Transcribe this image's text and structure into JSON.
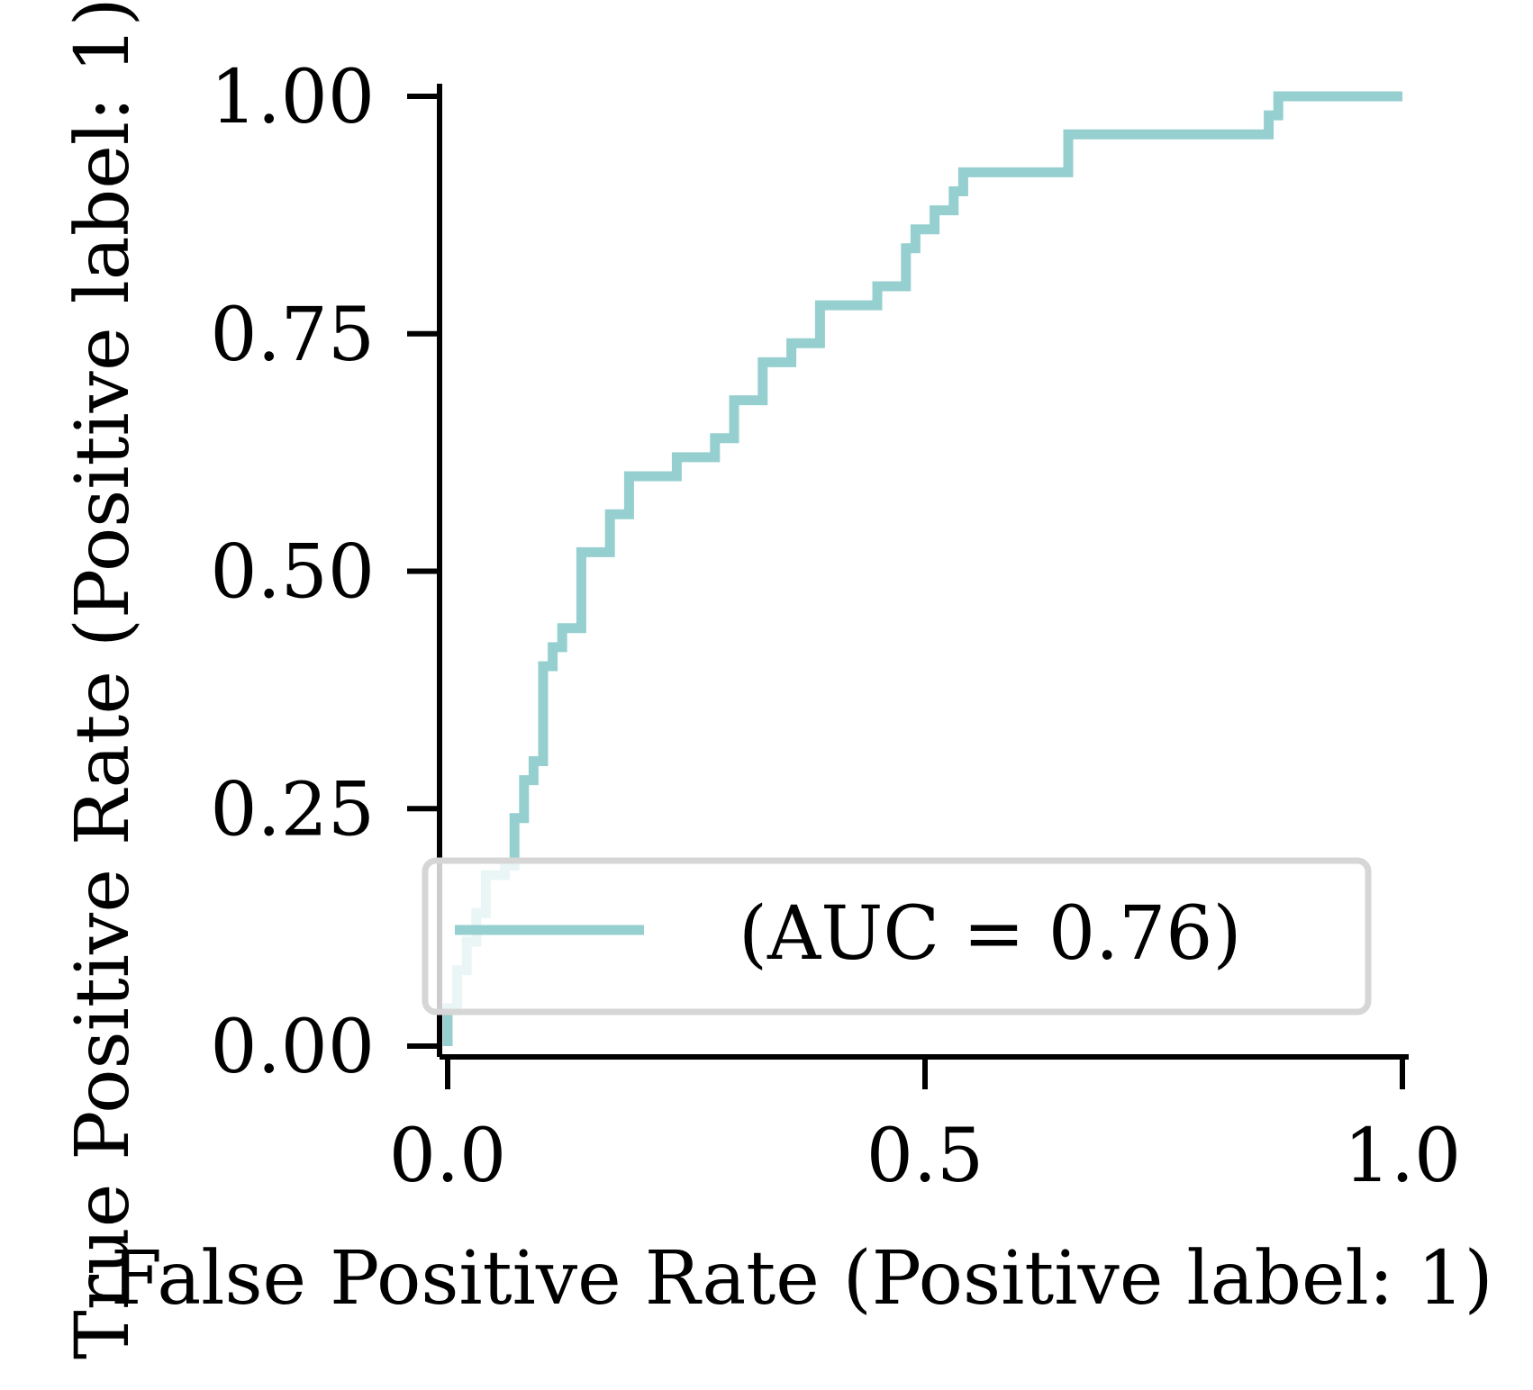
{
  "chart_data": {
    "type": "line",
    "title": "",
    "xlabel": "False Positive Rate (Positive label: 1)",
    "ylabel": "True Positive Rate (Positive label: 1)",
    "xlim": [
      0.0,
      1.0
    ],
    "ylim": [
      0.0,
      1.0
    ],
    "grid": false,
    "legend_position": "lower-right",
    "x_ticks": [
      "0.0",
      "0.5",
      "1.0"
    ],
    "y_ticks": [
      "0.00",
      "0.25",
      "0.50",
      "0.75",
      "1.00"
    ],
    "x_tick_values": [
      0.0,
      0.5,
      1.0
    ],
    "y_tick_values": [
      0.0,
      0.25,
      0.5,
      0.75,
      1.0
    ],
    "series": [
      {
        "name": "(AUC = 0.76)",
        "color": "#96cfcf",
        "x": [
          0.0,
          0.0,
          0.01,
          0.01,
          0.02,
          0.02,
          0.03,
          0.03,
          0.04,
          0.04,
          0.06,
          0.06,
          0.07,
          0.07,
          0.08,
          0.08,
          0.09,
          0.09,
          0.1,
          0.1,
          0.11,
          0.11,
          0.12,
          0.12,
          0.14,
          0.14,
          0.17,
          0.17,
          0.19,
          0.19,
          0.24,
          0.24,
          0.28,
          0.28,
          0.3,
          0.3,
          0.33,
          0.33,
          0.36,
          0.36,
          0.39,
          0.39,
          0.45,
          0.45,
          0.48,
          0.48,
          0.49,
          0.49,
          0.51,
          0.51,
          0.53,
          0.53,
          0.54,
          0.54,
          0.65,
          0.65,
          0.86,
          0.86,
          0.87,
          0.87,
          1.0
        ],
        "y": [
          0.0,
          0.04,
          0.04,
          0.08,
          0.08,
          0.11,
          0.11,
          0.14,
          0.14,
          0.18,
          0.18,
          0.19,
          0.19,
          0.24,
          0.24,
          0.28,
          0.28,
          0.3,
          0.3,
          0.4,
          0.4,
          0.42,
          0.42,
          0.44,
          0.44,
          0.52,
          0.52,
          0.56,
          0.56,
          0.6,
          0.6,
          0.62,
          0.62,
          0.64,
          0.64,
          0.68,
          0.68,
          0.72,
          0.72,
          0.74,
          0.74,
          0.78,
          0.78,
          0.8,
          0.8,
          0.84,
          0.84,
          0.86,
          0.86,
          0.88,
          0.88,
          0.9,
          0.9,
          0.92,
          0.92,
          0.96,
          0.96,
          0.98,
          0.98,
          1.0,
          1.0
        ]
      }
    ]
  }
}
